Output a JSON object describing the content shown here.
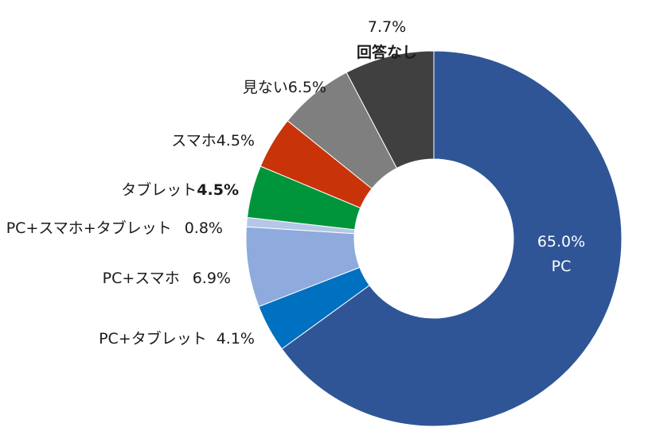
{
  "chart_data": {
    "type": "pie",
    "style": "donut",
    "slices": [
      {
        "label": "PC",
        "value": 65.0,
        "display": "65.0%",
        "color": "#2f5597"
      },
      {
        "label": "PC+タブレット",
        "value": 4.1,
        "display": "4.1%",
        "color": "#0070c0"
      },
      {
        "label": "PC+スマホ",
        "value": 6.9,
        "display": "6.9%",
        "color": "#8faadc"
      },
      {
        "label": "PC+スマホ+タブレット",
        "value": 0.8,
        "display": "0.8%",
        "color": "#b4c7e7"
      },
      {
        "label": "タブレット",
        "value": 4.5,
        "display": "4.5%",
        "color": "#00953a"
      },
      {
        "label": "スマホ",
        "value": 4.5,
        "display": "4.5%",
        "color": "#c9330a"
      },
      {
        "label": "見ない",
        "value": 6.5,
        "display": "6.5%",
        "color": "#7f7f7f"
      },
      {
        "label": "回答なし",
        "value": 7.7,
        "display": "7.7%",
        "color": "#404040"
      }
    ]
  }
}
